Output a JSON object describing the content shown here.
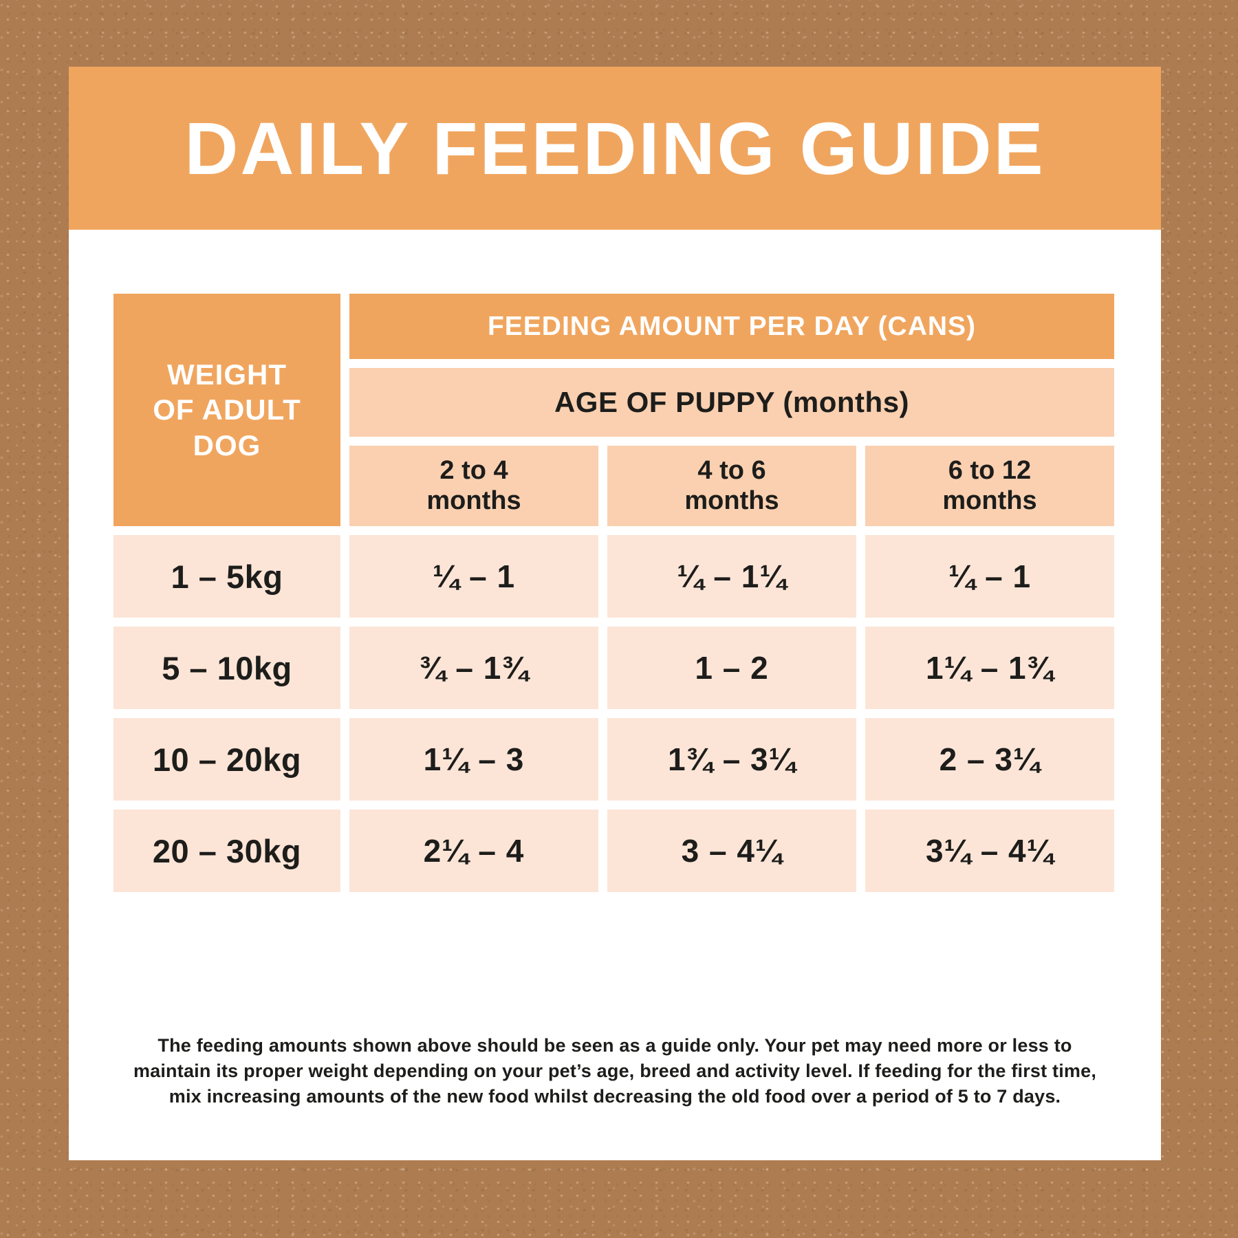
{
  "title": "DAILY FEEDING GUIDE",
  "table": {
    "corner_lines": [
      "WEIGHT",
      "OF ADULT",
      "DOG"
    ],
    "top_header": "FEEDING AMOUNT PER DAY (CANS)",
    "sub_header": "AGE OF PUPPY (months)",
    "age_columns": [
      {
        "range": "2 to 4",
        "unit": "months"
      },
      {
        "range": "4 to 6",
        "unit": "months"
      },
      {
        "range": "6 to 12",
        "unit": "months"
      }
    ],
    "rows": [
      {
        "weight": "1 – 5kg",
        "values": [
          "¼ – 1",
          "¼ – 1¼",
          "¼ – 1"
        ]
      },
      {
        "weight": "5 – 10kg",
        "values": [
          "¾ – 1¾",
          "1 – 2",
          "1¼ – 1¾"
        ]
      },
      {
        "weight": "10 – 20kg",
        "values": [
          "1¼ – 3",
          "1¾ – 3¼",
          "2 – 3¼"
        ]
      },
      {
        "weight": "20 – 30kg",
        "values": [
          "2¼ – 4",
          "3 – 4¼",
          "3¼ – 4¼"
        ]
      }
    ]
  },
  "footer_lines": [
    "The feeding amounts shown above should be seen as a guide only. Your pet may need more or less to",
    "maintain its proper weight depending on your pet’s age, breed and activity level. If feeding for the first time,",
    "mix increasing amounts of the new food whilst decreasing the old food over a period of 5 to 7 days."
  ],
  "colors": {
    "accent_orange": "#f0a55e",
    "header_peach": "#fad0b0",
    "cell_peach": "#fce5d7",
    "background_brown": "#ae7c51",
    "text_dark": "#1d1d1b",
    "card_white": "#ffffff"
  }
}
